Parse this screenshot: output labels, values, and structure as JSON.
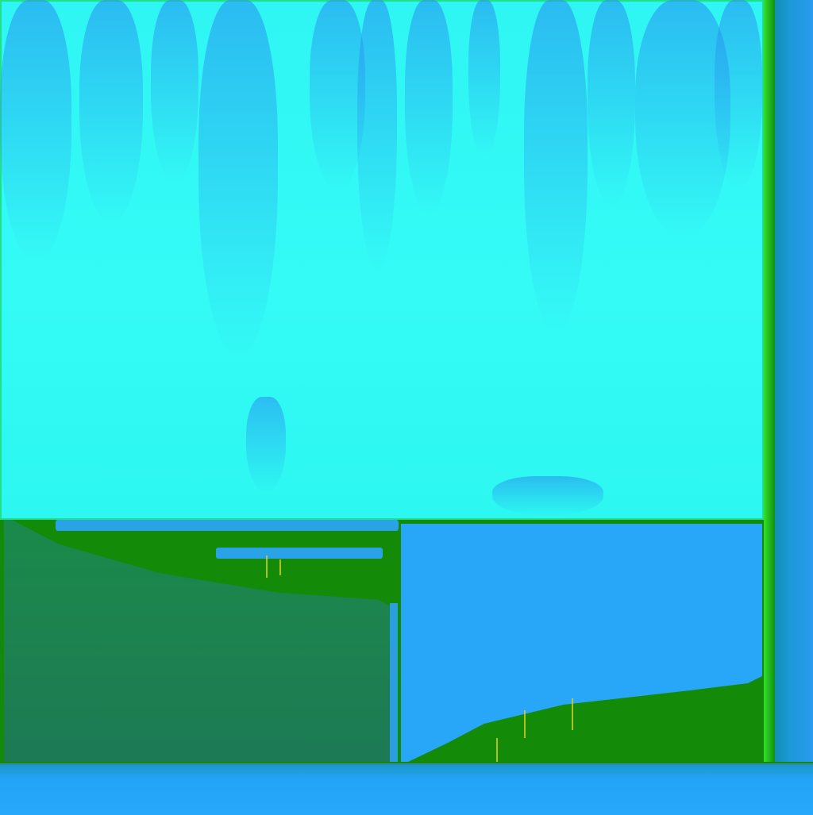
{
  "image": {
    "description_kind": "abstract-texture",
    "colors": {
      "background": "#138a08",
      "cyan": "#2ff5f3",
      "blue": "#28a6f8",
      "dark_green_panel": "#1c7a55",
      "accent_yellow": "#d6d020"
    }
  }
}
